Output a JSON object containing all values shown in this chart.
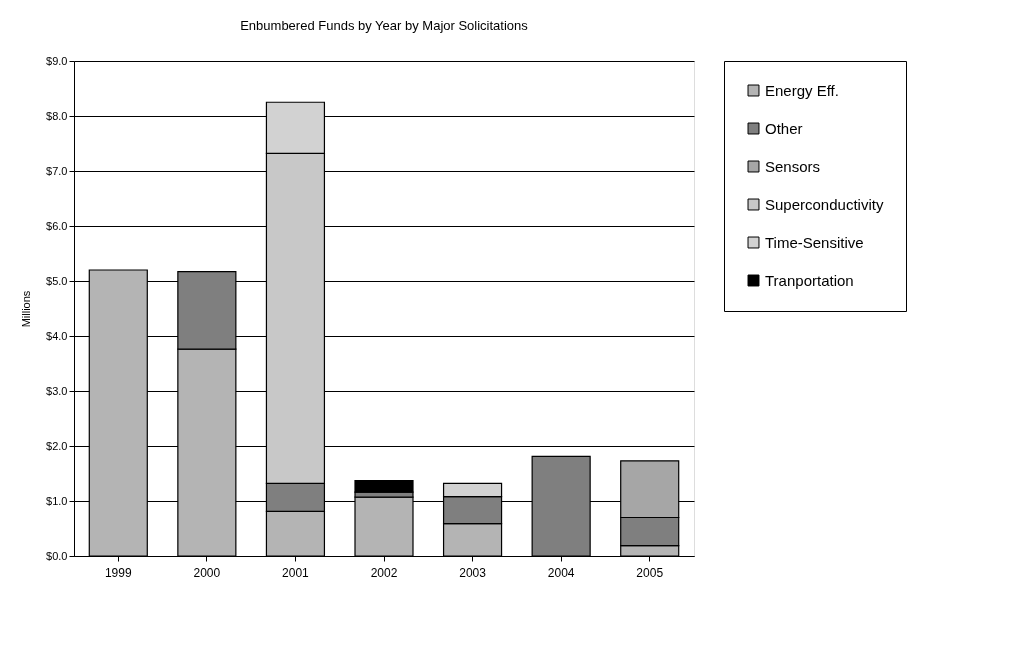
{
  "chart_data": {
    "type": "bar",
    "title": "Enbumbered Funds by Year by Major Solicitations",
    "ylabel": "Millions",
    "categories": [
      "1999",
      "2000",
      "2001",
      "2002",
      "2003",
      "2004",
      "2005"
    ],
    "stacked": true,
    "series": [
      {
        "name": "Energy Eff.",
        "color": "#b4b4b4",
        "values": [
          5.2,
          3.76,
          0.81,
          1.07,
          0.59,
          null,
          0.19
        ]
      },
      {
        "name": "Other",
        "color": "#7f7f7f",
        "values": [
          null,
          1.41,
          0.51,
          0.09,
          0.49,
          1.81,
          0.51
        ]
      },
      {
        "name": "Sensors",
        "color": "#a6a6a6",
        "values": [
          null,
          null,
          null,
          null,
          null,
          null,
          1.03
        ]
      },
      {
        "name": "Superconductivity",
        "color": "#c8c8c8",
        "values": [
          null,
          null,
          6.0,
          null,
          null,
          null,
          null
        ]
      },
      {
        "name": "Time-Sensitive",
        "color": "#d2d2d2",
        "values": [
          null,
          null,
          0.93,
          null,
          0.24,
          null,
          null
        ]
      },
      {
        "name": "Tranportation",
        "color": "#000000",
        "values": [
          null,
          null,
          null,
          0.21,
          null,
          null,
          null
        ]
      }
    ],
    "ylim": [
      0,
      9
    ],
    "yticks": [
      {
        "value": 0,
        "label": "$0.0"
      },
      {
        "value": 1,
        "label": "$1.0"
      },
      {
        "value": 2,
        "label": "$2.0"
      },
      {
        "value": 3,
        "label": "$3.0"
      },
      {
        "value": 4,
        "label": "$4.0"
      },
      {
        "value": 5,
        "label": "$5.0"
      },
      {
        "value": 6,
        "label": "$6.0"
      },
      {
        "value": 7,
        "label": "$7.0"
      },
      {
        "value": 8,
        "label": "$8.0"
      },
      {
        "value": 9,
        "label": "$9.0"
      }
    ],
    "grid": "y",
    "legend": "right"
  }
}
